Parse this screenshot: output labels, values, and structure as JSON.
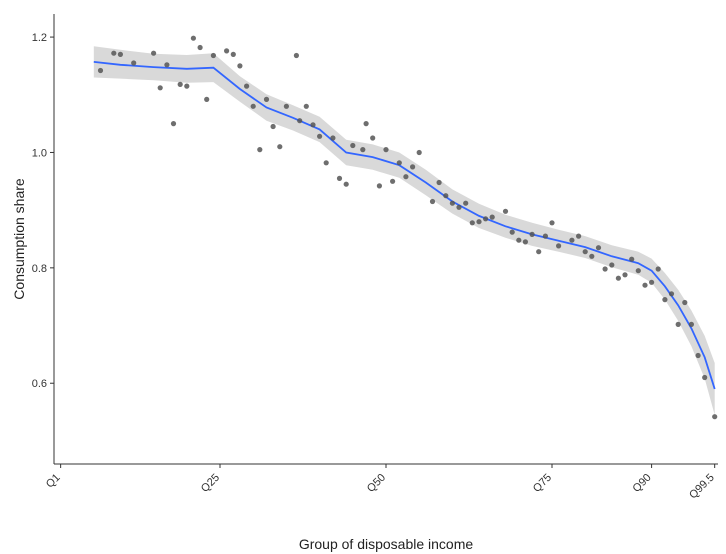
{
  "chart_data": {
    "type": "scatter",
    "title": "",
    "xlabel": "Group of disposable income",
    "ylabel": "Consumption share",
    "x_ticks": [
      {
        "label": "Q1",
        "value": 1
      },
      {
        "label": "Q25",
        "value": 25
      },
      {
        "label": "Q50",
        "value": 50
      },
      {
        "label": "Q75",
        "value": 75
      },
      {
        "label": "Q90",
        "value": 90
      },
      {
        "label": "Q99.5",
        "value": 99.5
      }
    ],
    "y_ticks": [
      0.6,
      0.8,
      1.0,
      1.2
    ],
    "y_tick_labels": [
      "0.6",
      "0.8",
      "1.0",
      "1.2"
    ],
    "xlim": [
      0,
      100
    ],
    "ylim": [
      0.46,
      1.24
    ],
    "grid": false,
    "colors": {
      "points": "#555555",
      "smooth_line": "#3366ff",
      "confidence_band": "#d9d9d9"
    },
    "points": [
      {
        "x": 7,
        "y": 1.142
      },
      {
        "x": 9,
        "y": 1.172
      },
      {
        "x": 10,
        "y": 1.17
      },
      {
        "x": 12,
        "y": 1.155
      },
      {
        "x": 15,
        "y": 1.172
      },
      {
        "x": 16,
        "y": 1.112
      },
      {
        "x": 17,
        "y": 1.152
      },
      {
        "x": 18,
        "y": 1.05
      },
      {
        "x": 19,
        "y": 1.118
      },
      {
        "x": 20,
        "y": 1.115
      },
      {
        "x": 21,
        "y": 1.198
      },
      {
        "x": 22,
        "y": 1.182
      },
      {
        "x": 23,
        "y": 1.092
      },
      {
        "x": 24,
        "y": 1.168
      },
      {
        "x": 26,
        "y": 1.176
      },
      {
        "x": 27,
        "y": 1.17
      },
      {
        "x": 28,
        "y": 1.15
      },
      {
        "x": 29,
        "y": 1.115
      },
      {
        "x": 30,
        "y": 1.08
      },
      {
        "x": 31,
        "y": 1.005
      },
      {
        "x": 32,
        "y": 1.092
      },
      {
        "x": 33,
        "y": 1.045
      },
      {
        "x": 34,
        "y": 1.01
      },
      {
        "x": 35,
        "y": 1.08
      },
      {
        "x": 36.5,
        "y": 1.168
      },
      {
        "x": 37,
        "y": 1.055
      },
      {
        "x": 38,
        "y": 1.08
      },
      {
        "x": 39,
        "y": 1.048
      },
      {
        "x": 40,
        "y": 1.028
      },
      {
        "x": 41,
        "y": 0.982
      },
      {
        "x": 42,
        "y": 1.025
      },
      {
        "x": 43,
        "y": 0.955
      },
      {
        "x": 44,
        "y": 0.945
      },
      {
        "x": 45,
        "y": 1.012
      },
      {
        "x": 46.5,
        "y": 1.005
      },
      {
        "x": 47,
        "y": 1.05
      },
      {
        "x": 48,
        "y": 1.025
      },
      {
        "x": 49,
        "y": 0.942
      },
      {
        "x": 50,
        "y": 1.005
      },
      {
        "x": 51,
        "y": 0.95
      },
      {
        "x": 52,
        "y": 0.982
      },
      {
        "x": 53,
        "y": 0.958
      },
      {
        "x": 54,
        "y": 0.975
      },
      {
        "x": 55,
        "y": 1.0
      },
      {
        "x": 57,
        "y": 0.915
      },
      {
        "x": 58,
        "y": 0.948
      },
      {
        "x": 59,
        "y": 0.925
      },
      {
        "x": 60,
        "y": 0.912
      },
      {
        "x": 61,
        "y": 0.905
      },
      {
        "x": 62,
        "y": 0.912
      },
      {
        "x": 63,
        "y": 0.878
      },
      {
        "x": 64,
        "y": 0.88
      },
      {
        "x": 65,
        "y": 0.885
      },
      {
        "x": 66,
        "y": 0.888
      },
      {
        "x": 68,
        "y": 0.898
      },
      {
        "x": 69,
        "y": 0.862
      },
      {
        "x": 70,
        "y": 0.848
      },
      {
        "x": 71,
        "y": 0.845
      },
      {
        "x": 72,
        "y": 0.858
      },
      {
        "x": 73,
        "y": 0.828
      },
      {
        "x": 74,
        "y": 0.855
      },
      {
        "x": 75,
        "y": 0.878
      },
      {
        "x": 76,
        "y": 0.838
      },
      {
        "x": 78,
        "y": 0.848
      },
      {
        "x": 79,
        "y": 0.855
      },
      {
        "x": 80,
        "y": 0.828
      },
      {
        "x": 81,
        "y": 0.82
      },
      {
        "x": 82,
        "y": 0.835
      },
      {
        "x": 83,
        "y": 0.798
      },
      {
        "x": 84,
        "y": 0.805
      },
      {
        "x": 85,
        "y": 0.782
      },
      {
        "x": 86,
        "y": 0.788
      },
      {
        "x": 87,
        "y": 0.815
      },
      {
        "x": 88,
        "y": 0.795
      },
      {
        "x": 89,
        "y": 0.77
      },
      {
        "x": 90,
        "y": 0.775
      },
      {
        "x": 91,
        "y": 0.798
      },
      {
        "x": 92,
        "y": 0.745
      },
      {
        "x": 93,
        "y": 0.755
      },
      {
        "x": 94,
        "y": 0.702
      },
      {
        "x": 95,
        "y": 0.74
      },
      {
        "x": 96,
        "y": 0.702
      },
      {
        "x": 97,
        "y": 0.648
      },
      {
        "x": 98,
        "y": 0.61
      },
      {
        "x": 99.5,
        "y": 0.542
      }
    ],
    "smooth": {
      "x": [
        6,
        10,
        15,
        20,
        24,
        28,
        32,
        36,
        40,
        44,
        48,
        52,
        56,
        60,
        64,
        68,
        72,
        76,
        80,
        84,
        88,
        90,
        92,
        94,
        96,
        98,
        99.5
      ],
      "y": [
        1.157,
        1.152,
        1.148,
        1.145,
        1.147,
        1.11,
        1.078,
        1.06,
        1.04,
        1.0,
        0.992,
        0.978,
        0.948,
        0.915,
        0.89,
        0.872,
        0.858,
        0.847,
        0.836,
        0.82,
        0.808,
        0.795,
        0.768,
        0.735,
        0.695,
        0.645,
        0.59
      ],
      "lower": [
        1.13,
        1.128,
        1.125,
        1.121,
        1.122,
        1.088,
        1.055,
        1.038,
        1.018,
        0.978,
        0.97,
        0.956,
        0.926,
        0.894,
        0.869,
        0.852,
        0.838,
        0.828,
        0.817,
        0.801,
        0.788,
        0.774,
        0.745,
        0.708,
        0.664,
        0.608,
        0.545
      ],
      "upper": [
        1.184,
        1.178,
        1.171,
        1.169,
        1.172,
        1.132,
        1.101,
        1.082,
        1.062,
        1.022,
        1.014,
        1.0,
        0.97,
        0.936,
        0.911,
        0.892,
        0.878,
        0.866,
        0.855,
        0.839,
        0.828,
        0.816,
        0.791,
        0.762,
        0.726,
        0.682,
        0.635
      ]
    }
  }
}
